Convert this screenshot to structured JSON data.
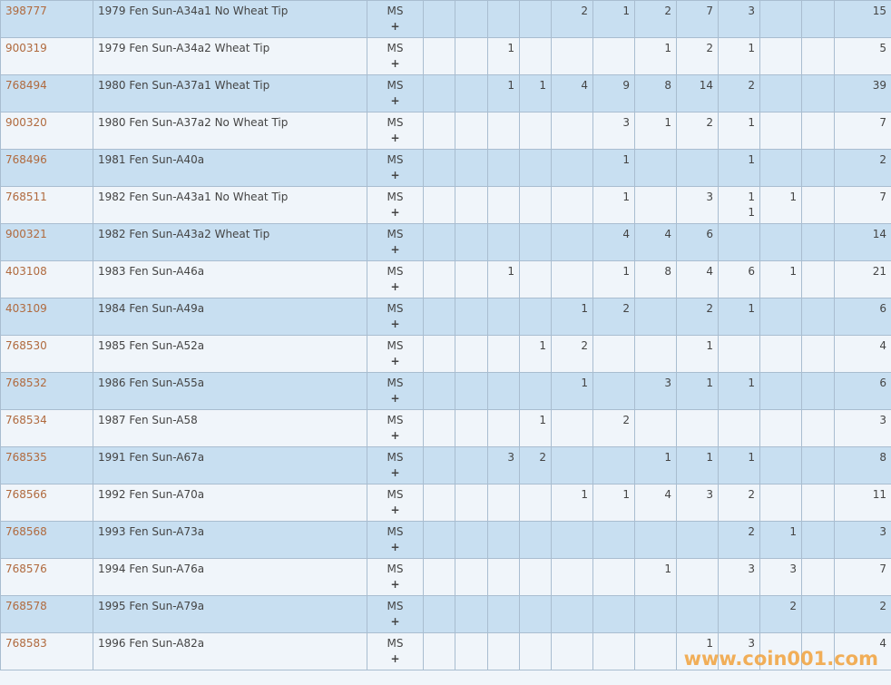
{
  "grade_label": "MS",
  "plus_label": "+",
  "watermark": "www.coin001.com",
  "rows": [
    {
      "id": "398777",
      "desc": "1979 Fen Sun-A34a1 No Wheat Tip",
      "cells": [
        "",
        "",
        "",
        "",
        "2",
        "1",
        "2",
        "7",
        "3",
        "",
        ""
      ],
      "total": "15"
    },
    {
      "id": "900319",
      "desc": "1979 Fen Sun-A34a2 Wheat Tip",
      "cells": [
        "",
        "",
        "1",
        "",
        "",
        "",
        "1",
        "2",
        "1",
        "",
        ""
      ],
      "total": "5"
    },
    {
      "id": "768494",
      "desc": "1980 Fen Sun-A37a1 Wheat Tip",
      "cells": [
        "",
        "",
        "1",
        "1",
        "4",
        "9",
        "8",
        "14",
        "2",
        "",
        ""
      ],
      "total": "39"
    },
    {
      "id": "900320",
      "desc": "1980 Fen Sun-A37a2 No Wheat Tip",
      "cells": [
        "",
        "",
        "",
        "",
        "",
        "3",
        "1",
        "2",
        "1",
        "",
        ""
      ],
      "total": "7"
    },
    {
      "id": "768496",
      "desc": "1981 Fen Sun-A40a",
      "cells": [
        "",
        "",
        "",
        "",
        "",
        "1",
        "",
        "",
        "1",
        "",
        ""
      ],
      "total": "2"
    },
    {
      "id": "768511",
      "desc": "1982 Fen Sun-A43a1 No Wheat Tip",
      "cells": [
        "",
        "",
        "",
        "",
        "",
        "1",
        "",
        "3",
        "1\n1",
        "1",
        ""
      ],
      "total": "7"
    },
    {
      "id": "900321",
      "desc": "1982 Fen Sun-A43a2 Wheat Tip",
      "cells": [
        "",
        "",
        "",
        "",
        "",
        "4",
        "4",
        "6",
        "",
        "",
        ""
      ],
      "total": "14"
    },
    {
      "id": "403108",
      "desc": "1983 Fen Sun-A46a",
      "cells": [
        "",
        "",
        "1",
        "",
        "",
        "1",
        "8",
        "4",
        "6",
        "1",
        ""
      ],
      "total": "21"
    },
    {
      "id": "403109",
      "desc": "1984 Fen Sun-A49a",
      "cells": [
        "",
        "",
        "",
        "",
        "1",
        "2",
        "",
        "2",
        "1",
        "",
        ""
      ],
      "total": "6"
    },
    {
      "id": "768530",
      "desc": "1985 Fen Sun-A52a",
      "cells": [
        "",
        "",
        "",
        "1",
        "2",
        "",
        "",
        "1",
        "",
        "",
        ""
      ],
      "total": "4"
    },
    {
      "id": "768532",
      "desc": "1986 Fen Sun-A55a",
      "cells": [
        "",
        "",
        "",
        "",
        "1",
        "",
        "3",
        "1",
        "1",
        "",
        ""
      ],
      "total": "6"
    },
    {
      "id": "768534",
      "desc": "1987 Fen Sun-A58",
      "cells": [
        "",
        "",
        "",
        "1",
        "",
        "2",
        "",
        "",
        "",
        "",
        ""
      ],
      "total": "3"
    },
    {
      "id": "768535",
      "desc": "1991 Fen Sun-A67a",
      "cells": [
        "",
        "",
        "3",
        "2",
        "",
        "",
        "1",
        "1",
        "1",
        "",
        ""
      ],
      "total": "8"
    },
    {
      "id": "768566",
      "desc": "1992 Fen Sun-A70a",
      "cells": [
        "",
        "",
        "",
        "",
        "1",
        "1",
        "4",
        "3",
        "2",
        "",
        ""
      ],
      "total": "11"
    },
    {
      "id": "768568",
      "desc": "1993 Fen Sun-A73a",
      "cells": [
        "",
        "",
        "",
        "",
        "",
        "",
        "",
        "",
        "2",
        "1",
        ""
      ],
      "total": "3"
    },
    {
      "id": "768576",
      "desc": "1994 Fen Sun-A76a",
      "cells": [
        "",
        "",
        "",
        "",
        "",
        "",
        "1",
        "",
        "3",
        "3",
        ""
      ],
      "total": "7"
    },
    {
      "id": "768578",
      "desc": "1995 Fen Sun-A79a",
      "cells": [
        "",
        "",
        "",
        "",
        "",
        "",
        "",
        "",
        "",
        "2",
        ""
      ],
      "total": "2"
    },
    {
      "id": "768583",
      "desc": "1996 Fen Sun-A82a",
      "cells": [
        "",
        "",
        "",
        "",
        "",
        "",
        "",
        "1",
        "3",
        "",
        ""
      ],
      "total": "4"
    }
  ]
}
